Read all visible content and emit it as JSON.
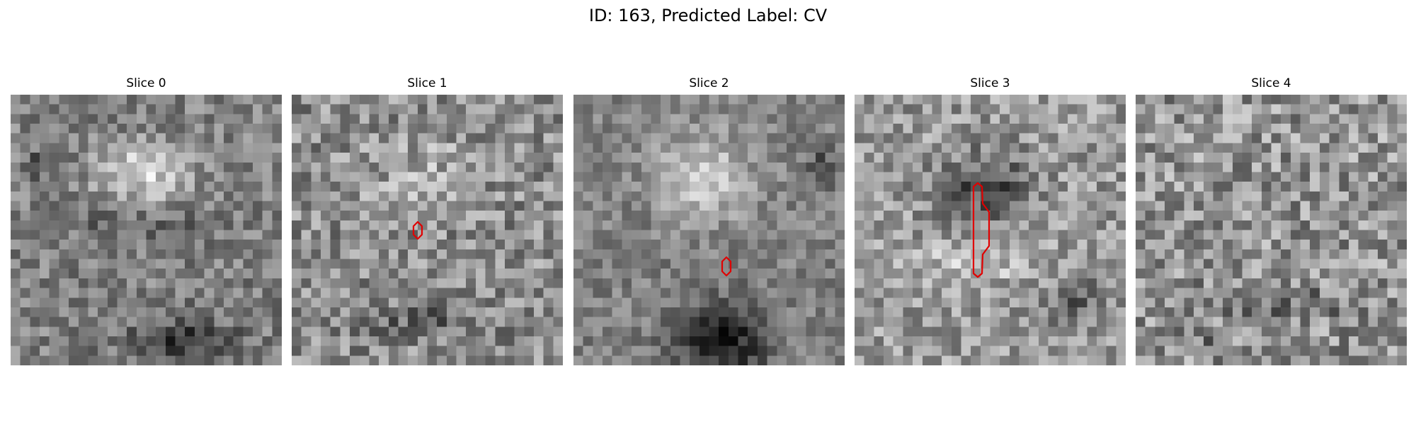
{
  "figure": {
    "title": "ID: 163, Predicted Label: CV"
  },
  "slices": [
    {
      "title": "Slice 0",
      "has_contour": false
    },
    {
      "title": "Slice 1",
      "has_contour": true
    },
    {
      "title": "Slice 2",
      "has_contour": true
    },
    {
      "title": "Slice 3",
      "has_contour": true
    },
    {
      "title": "Slice 4",
      "has_contour": false
    }
  ],
  "colors": {
    "contour": "#e00000",
    "colormap": "grayscale"
  }
}
